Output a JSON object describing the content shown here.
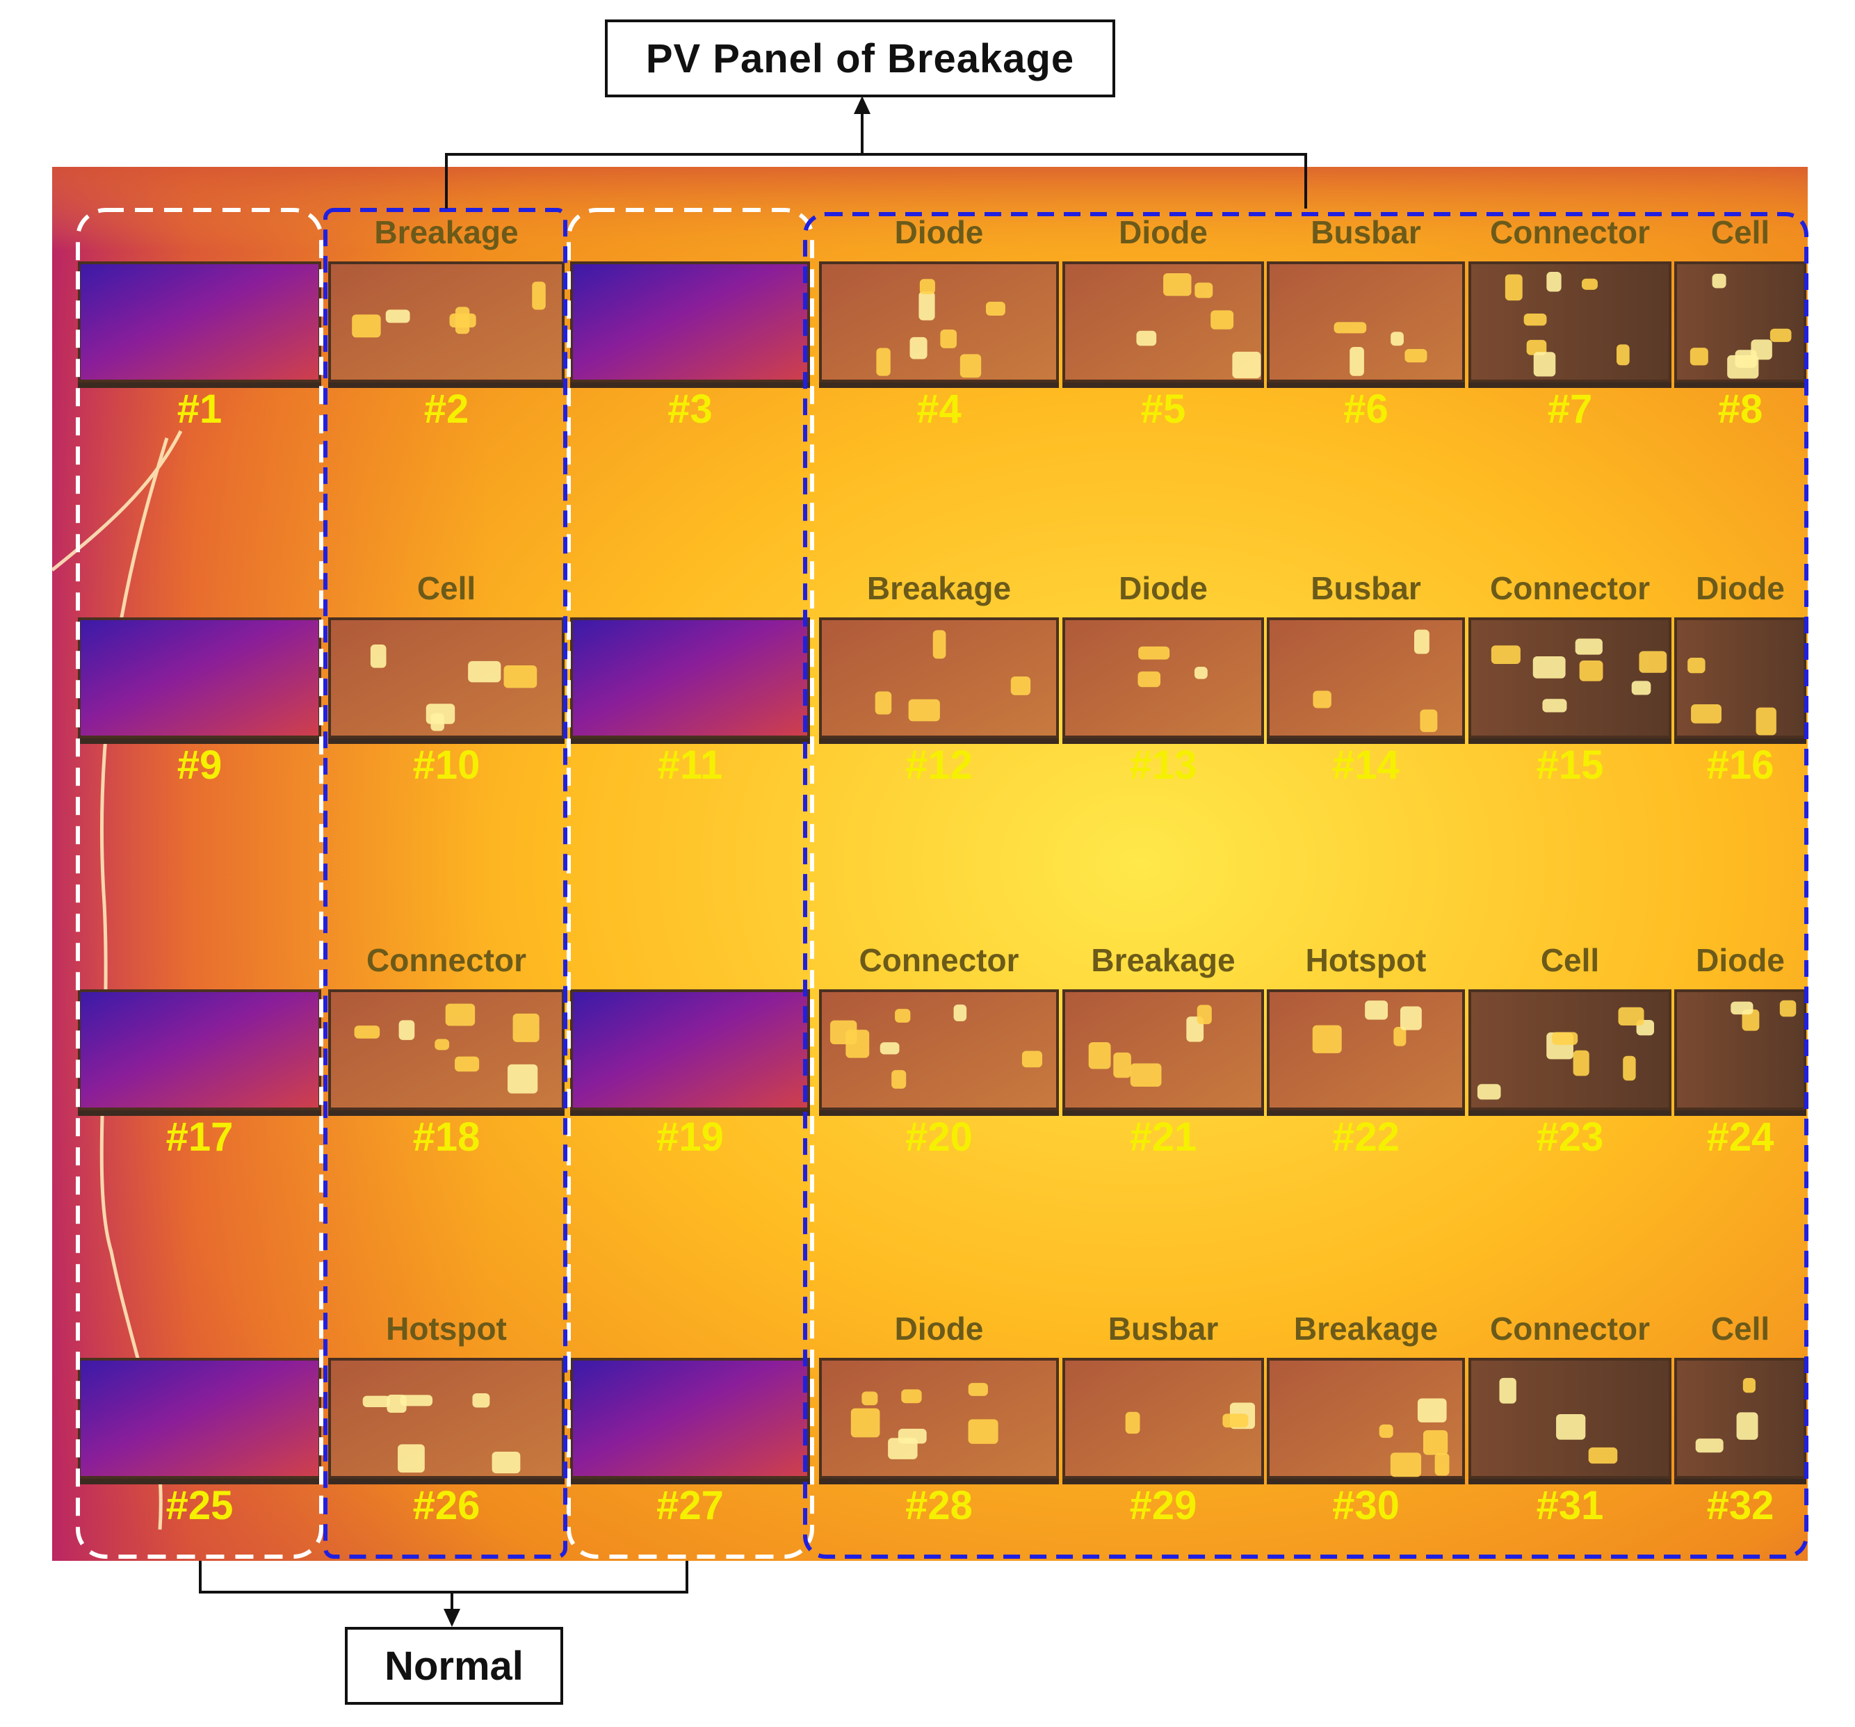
{
  "title_top": "PV Panel of Breakage",
  "title_bottom": "Normal",
  "colors": {
    "normal_group_border": "#ffffff",
    "breakage_group_border": "#2020e0",
    "panel_number": "#f5f000",
    "fault_label": "#6b5a1a"
  },
  "panels": [
    {
      "num": "#1",
      "type": "normal"
    },
    {
      "num": "#2",
      "label": "Breakage"
    },
    {
      "num": "#3",
      "type": "normal"
    },
    {
      "num": "#4",
      "label": "Diode"
    },
    {
      "num": "#5",
      "label": "Diode"
    },
    {
      "num": "#6",
      "label": "Busbar"
    },
    {
      "num": "#7",
      "label": "Connector"
    },
    {
      "num": "#8",
      "label": "Cell"
    },
    {
      "num": "#9",
      "type": "normal"
    },
    {
      "num": "#10",
      "label": "Cell"
    },
    {
      "num": "#11",
      "type": "normal"
    },
    {
      "num": "#12",
      "label": "Breakage"
    },
    {
      "num": "#13",
      "label": "Diode"
    },
    {
      "num": "#14",
      "label": "Busbar"
    },
    {
      "num": "#15",
      "label": "Connector"
    },
    {
      "num": "#16",
      "label": "Diode"
    },
    {
      "num": "#17",
      "type": "normal"
    },
    {
      "num": "#18",
      "label": "Connector"
    },
    {
      "num": "#19",
      "type": "normal"
    },
    {
      "num": "#20",
      "label": "Connector"
    },
    {
      "num": "#21",
      "label": "Breakage"
    },
    {
      "num": "#22",
      "label": "Hotspot"
    },
    {
      "num": "#23",
      "label": "Cell"
    },
    {
      "num": "#24",
      "label": "Diode"
    },
    {
      "num": "#25",
      "type": "normal"
    },
    {
      "num": "#26",
      "label": "Hotspot"
    },
    {
      "num": "#27",
      "type": "normal"
    },
    {
      "num": "#28",
      "label": "Diode"
    },
    {
      "num": "#29",
      "label": "Busbar"
    },
    {
      "num": "#30",
      "label": "Breakage"
    },
    {
      "num": "#31",
      "label": "Connector"
    },
    {
      "num": "#32",
      "label": "Cell"
    }
  ]
}
